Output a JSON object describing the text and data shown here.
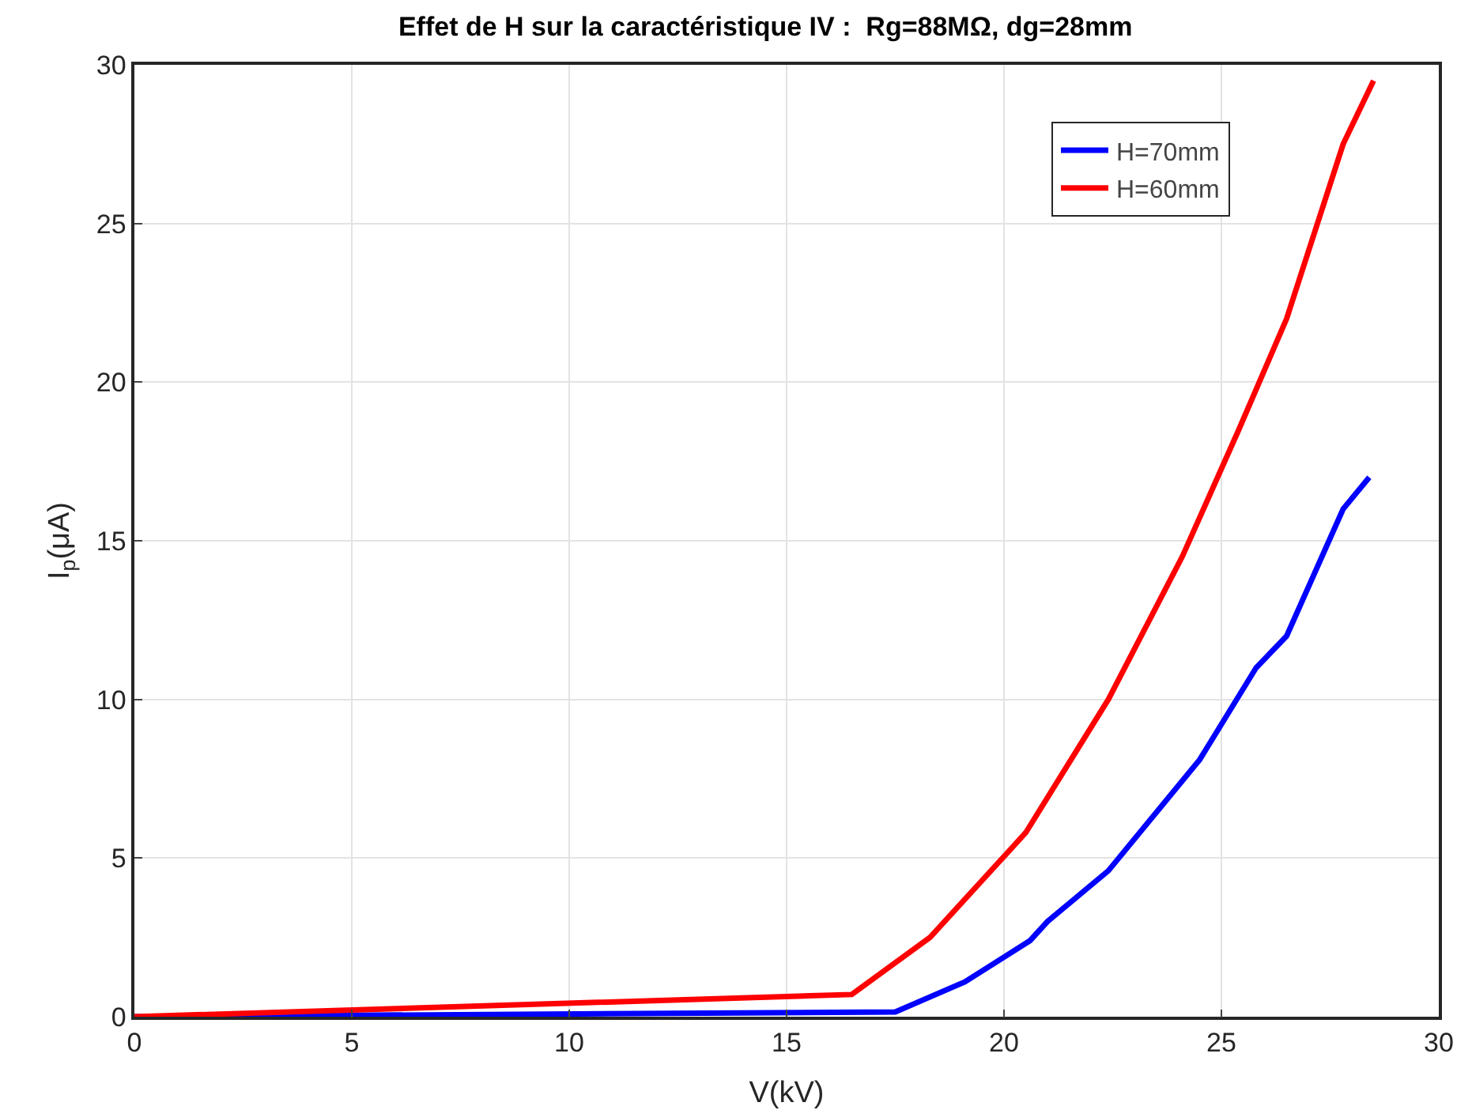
{
  "chart_data": {
    "type": "line",
    "title": "Effet de H sur la caractéristique IV :  Rg=88MΩ, dg=28mm",
    "xlabel": "V(kV)",
    "ylabel": "I$_{p}$(μA)",
    "series": [
      {
        "name": "H=70mm",
        "color": "#0000ff",
        "x": [
          0,
          17.5,
          19.1,
          20.6,
          21.0,
          22.4,
          24.5,
          25.8,
          26.5,
          27.8,
          28.4
        ],
        "values": [
          0,
          0.15,
          1.1,
          2.4,
          3.0,
          4.6,
          8.1,
          11,
          12,
          16,
          17
        ]
      },
      {
        "name": "H=60mm",
        "color": "#ff0000",
        "x": [
          0,
          16.5,
          18.3,
          20.5,
          22.4,
          24.1,
          25.4,
          26.5,
          27.8,
          28.5
        ],
        "values": [
          0,
          0.7,
          2.5,
          5.8,
          10,
          14.5,
          18.5,
          22,
          27.5,
          29.5
        ]
      }
    ],
    "xlim": [
      0,
      30
    ],
    "xticks": [
      0,
      5,
      10,
      15,
      20,
      25,
      30
    ],
    "ylim": [
      0,
      30
    ],
    "yticks": [
      0,
      5,
      10,
      15,
      20,
      25,
      30
    ],
    "grid": true,
    "legend": "top right",
    "marker": "none",
    "line_style": "solid"
  }
}
